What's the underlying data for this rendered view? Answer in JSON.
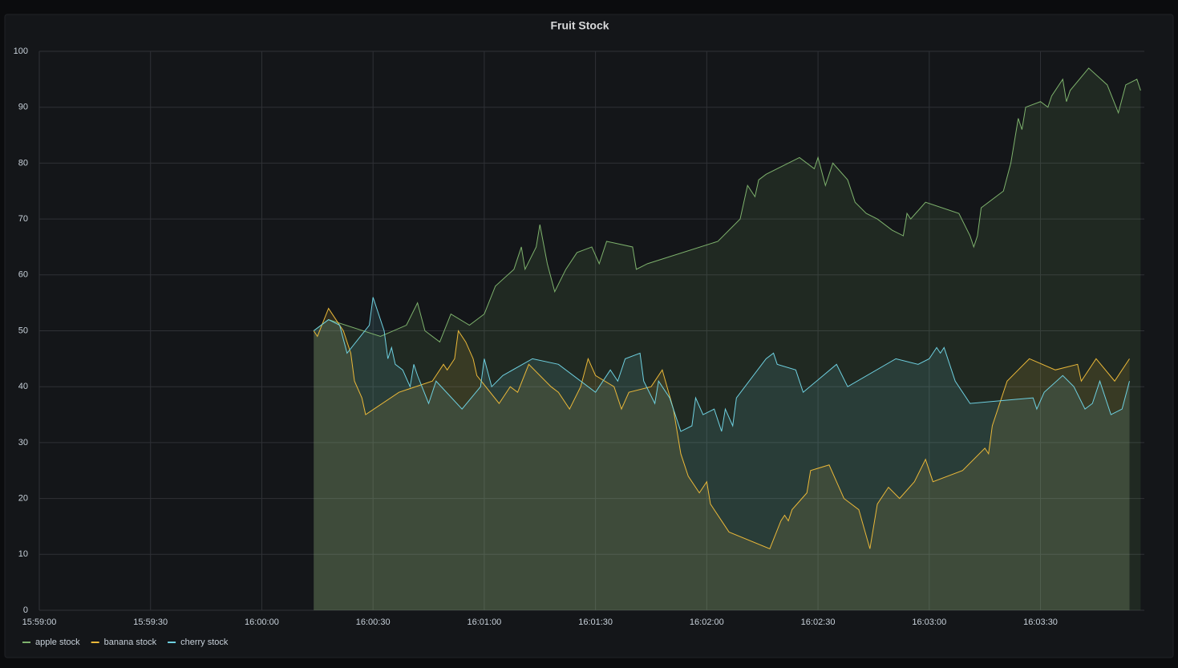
{
  "chart_data": {
    "type": "line",
    "title": "Fruit Stock",
    "xlim": [
      "15:59:00",
      "16:03:58"
    ],
    "xticks": [
      "15:59:00",
      "15:59:30",
      "16:00:00",
      "16:00:30",
      "16:01:00",
      "16:01:30",
      "16:02:00",
      "16:02:30",
      "16:03:00",
      "16:03:30"
    ],
    "ylim": [
      0,
      100
    ],
    "yticks": [
      0,
      10,
      20,
      30,
      40,
      50,
      60,
      70,
      80,
      90,
      100
    ],
    "grid": true,
    "fill": true,
    "legend": "bottom-left",
    "series": [
      {
        "name": "apple stock",
        "color": "#7eb26d",
        "x": [
          "16:00:14",
          "16:00:18",
          "16:00:32",
          "16:00:39",
          "16:00:42",
          "16:00:44",
          "16:00:48",
          "16:00:51",
          "16:00:56",
          "16:01:00",
          "16:01:03",
          "16:01:08",
          "16:01:10",
          "16:01:11",
          "16:01:14",
          "16:01:15",
          "16:01:17",
          "16:01:19",
          "16:01:22",
          "16:01:25",
          "16:01:29",
          "16:01:31",
          "16:01:33",
          "16:01:40",
          "16:01:41",
          "16:01:44",
          "16:02:03",
          "16:02:09",
          "16:02:11",
          "16:02:13",
          "16:02:14",
          "16:02:16",
          "16:02:25",
          "16:02:29",
          "16:02:30",
          "16:02:32",
          "16:02:34",
          "16:02:38",
          "16:02:40",
          "16:02:43",
          "16:02:46",
          "16:02:50",
          "16:02:53",
          "16:02:54",
          "16:02:55",
          "16:02:59",
          "16:03:08",
          "16:03:11",
          "16:03:12",
          "16:03:13",
          "16:03:14",
          "16:03:20",
          "16:03:22",
          "16:03:24",
          "16:03:25",
          "16:03:26",
          "16:03:30",
          "16:03:32",
          "16:03:33",
          "16:03:36",
          "16:03:37",
          "16:03:38",
          "16:03:43",
          "16:03:48",
          "16:03:51",
          "16:03:53",
          "16:03:56",
          "16:03:57"
        ],
        "values": [
          50,
          52,
          49,
          51,
          55,
          50,
          48,
          53,
          51,
          53,
          58,
          61,
          65,
          61,
          65,
          69,
          62,
          57,
          61,
          64,
          65,
          62,
          66,
          65,
          61,
          62,
          66,
          70,
          76,
          74,
          77,
          78,
          81,
          79,
          81,
          76,
          80,
          77,
          73,
          71,
          70,
          68,
          67,
          71,
          70,
          73,
          71,
          67,
          65,
          67,
          72,
          75,
          80,
          88,
          86,
          90,
          91,
          90,
          92,
          95,
          91,
          93,
          97,
          94,
          89,
          94,
          95,
          93
        ]
      },
      {
        "name": "banana stock",
        "color": "#eab839",
        "x": [
          "16:00:14",
          "16:00:15",
          "16:00:18",
          "16:00:20",
          "16:00:22",
          "16:00:24",
          "16:00:25",
          "16:00:27",
          "16:00:28",
          "16:00:37",
          "16:00:46",
          "16:00:49",
          "16:00:50",
          "16:00:52",
          "16:00:53",
          "16:00:55",
          "16:00:57",
          "16:00:58",
          "16:01:04",
          "16:01:07",
          "16:01:09",
          "16:01:12",
          "16:01:18",
          "16:01:20",
          "16:01:23",
          "16:01:26",
          "16:01:28",
          "16:01:30",
          "16:01:35",
          "16:01:37",
          "16:01:39",
          "16:01:45",
          "16:01:48",
          "16:01:51",
          "16:01:53",
          "16:01:55",
          "16:01:58",
          "16:02:00",
          "16:02:01",
          "16:02:06",
          "16:02:17",
          "16:02:20",
          "16:02:21",
          "16:02:22",
          "16:02:23",
          "16:02:27",
          "16:02:28",
          "16:02:33",
          "16:02:35",
          "16:02:37",
          "16:02:41",
          "16:02:44",
          "16:02:46",
          "16:02:49",
          "16:02:52",
          "16:02:56",
          "16:02:59",
          "16:03:01",
          "16:03:09",
          "16:03:15",
          "16:03:16",
          "16:03:17",
          "16:03:21",
          "16:03:27",
          "16:03:34",
          "16:03:40",
          "16:03:41",
          "16:03:45",
          "16:03:50",
          "16:03:54"
        ],
        "values": [
          50,
          49,
          54,
          52,
          50,
          46,
          41,
          38,
          35,
          39,
          41,
          44,
          43,
          45,
          50,
          48,
          45,
          42,
          37,
          40,
          39,
          44,
          40,
          39,
          36,
          40,
          45,
          42,
          40,
          36,
          39,
          40,
          43,
          36,
          28,
          24,
          21,
          23,
          19,
          14,
          11,
          16,
          17,
          16,
          18,
          21,
          25,
          26,
          23,
          20,
          18,
          11,
          19,
          22,
          20,
          23,
          27,
          23,
          25,
          29,
          28,
          33,
          41,
          45,
          43,
          44,
          41,
          45,
          41,
          45
        ]
      },
      {
        "name": "cherry stock",
        "color": "#6ed0e0",
        "x": [
          "16:00:14",
          "16:00:18",
          "16:00:21",
          "16:00:23",
          "16:00:29",
          "16:00:30",
          "16:00:33",
          "16:00:34",
          "16:00:35",
          "16:00:36",
          "16:00:38",
          "16:00:40",
          "16:00:41",
          "16:00:42",
          "16:00:45",
          "16:00:47",
          "16:00:54",
          "16:00:59",
          "16:01:00",
          "16:01:02",
          "16:01:05",
          "16:01:13",
          "16:01:20",
          "16:01:30",
          "16:01:34",
          "16:01:36",
          "16:01:38",
          "16:01:42",
          "16:01:43",
          "16:01:46",
          "16:01:47",
          "16:01:50",
          "16:01:53",
          "16:01:56",
          "16:01:57",
          "16:01:59",
          "16:02:02",
          "16:02:04",
          "16:02:05",
          "16:02:07",
          "16:02:08",
          "16:02:16",
          "16:02:18",
          "16:02:19",
          "16:02:24",
          "16:02:26",
          "16:02:35",
          "16:02:38",
          "16:02:51",
          "16:02:57",
          "16:03:00",
          "16:03:02",
          "16:03:03",
          "16:03:04",
          "16:03:07",
          "16:03:11",
          "16:03:28",
          "16:03:29",
          "16:03:31",
          "16:03:36",
          "16:03:39",
          "16:03:42",
          "16:03:44",
          "16:03:46",
          "16:03:49",
          "16:03:52",
          "16:03:54"
        ],
        "values": [
          50,
          52,
          51,
          46,
          51,
          56,
          50,
          45,
          47,
          44,
          43,
          40,
          44,
          42,
          37,
          41,
          36,
          40,
          45,
          40,
          42,
          45,
          44,
          39,
          43,
          41,
          45,
          46,
          41,
          37,
          41,
          38,
          32,
          33,
          38,
          35,
          36,
          32,
          36,
          33,
          38,
          45,
          46,
          44,
          43,
          39,
          44,
          40,
          45,
          44,
          45,
          47,
          46,
          47,
          41,
          37,
          38,
          36,
          39,
          42,
          40,
          36,
          37,
          41,
          35,
          36,
          41
        ]
      }
    ]
  }
}
